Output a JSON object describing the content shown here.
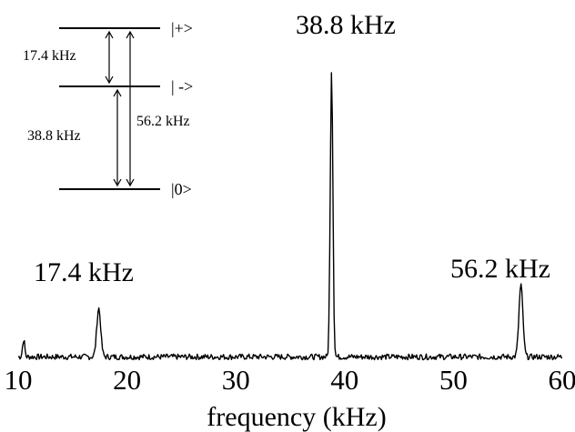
{
  "chart_data": {
    "type": "line",
    "title": "",
    "xlabel": "frequency (kHz)",
    "ylabel": "",
    "xlim": [
      10,
      60
    ],
    "ylim": [
      0,
      1
    ],
    "x_ticks": [
      10,
      20,
      30,
      40,
      50,
      60
    ],
    "grid": false,
    "legend": "none",
    "series": [
      {
        "name": "",
        "peaks": [
          {
            "x": 17.4,
            "y": 0.17
          },
          {
            "x": 38.8,
            "y": 1.0
          },
          {
            "x": 56.2,
            "y": 0.25
          }
        ],
        "baseline_noise": 0.02
      }
    ],
    "annotations": [
      {
        "text": "17.4 kHz",
        "x": 17.4
      },
      {
        "text": "38.8 kHz",
        "x": 38.8
      },
      {
        "text": "56.2 kHz",
        "x": 56.2
      }
    ],
    "inset": {
      "type": "energy-level-diagram",
      "levels": [
        "|+>",
        "| ->",
        "|0>"
      ],
      "transitions": [
        {
          "from": "|+>",
          "to": "| ->",
          "label": "17.4 kHz"
        },
        {
          "from": "| ->",
          "to": "|0>",
          "label": "38.8 kHz"
        },
        {
          "from": "|+>",
          "to": "|0>",
          "label": "56.2 kHz"
        }
      ]
    }
  }
}
